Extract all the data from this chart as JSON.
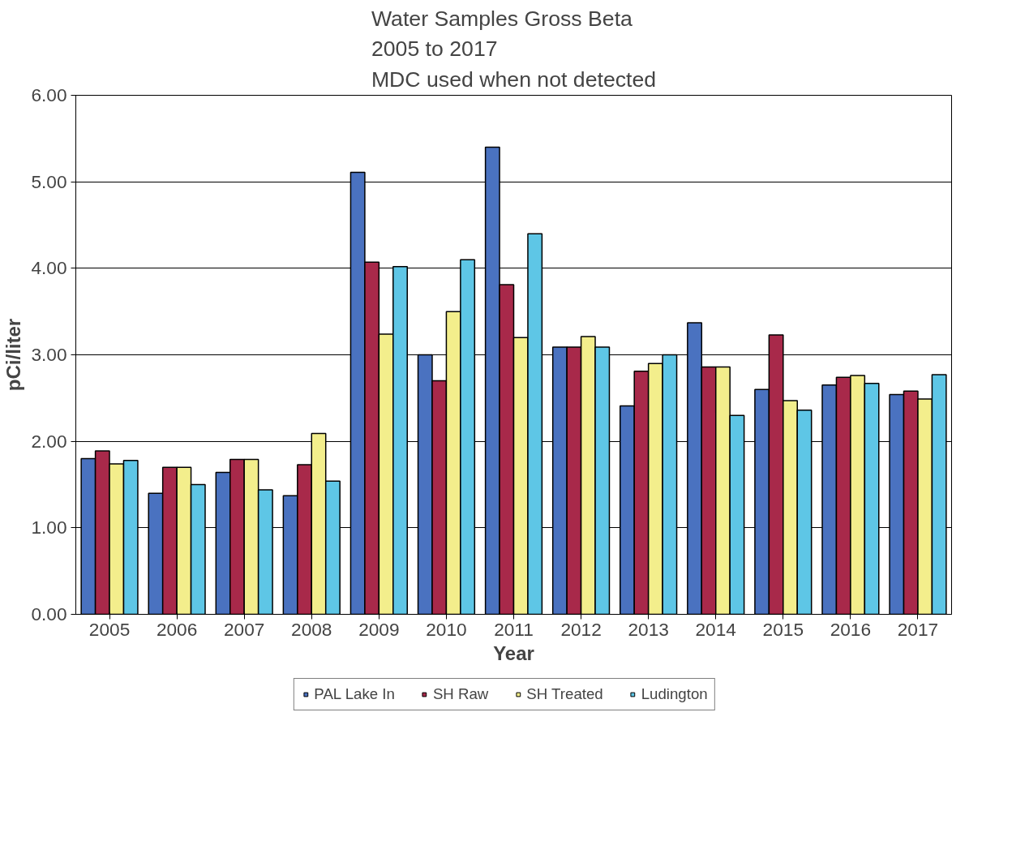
{
  "chart_data": {
    "type": "bar",
    "title": "Water Samples Gross Beta\n2005 to 2017\nMDC used when not detected",
    "xlabel": "Year",
    "ylabel": "pCi/liter",
    "categories": [
      "2005",
      "2006",
      "2007",
      "2008",
      "2009",
      "2010",
      "2011",
      "2012",
      "2013",
      "2014",
      "2015",
      "2016",
      "2017"
    ],
    "series": [
      {
        "name": "PAL Lake In",
        "color": "#4a72c0",
        "values": [
          1.8,
          1.4,
          1.64,
          1.37,
          5.11,
          3.0,
          5.4,
          3.09,
          2.41,
          3.37,
          2.6,
          2.65,
          2.54
        ]
      },
      {
        "name": "SH Raw",
        "color": "#a8294a",
        "values": [
          1.89,
          1.7,
          1.79,
          1.73,
          4.07,
          2.7,
          3.81,
          3.09,
          2.81,
          2.86,
          3.23,
          2.74,
          2.58
        ]
      },
      {
        "name": "SH Treated",
        "color": "#f3ee8c",
        "values": [
          1.74,
          1.7,
          1.79,
          2.09,
          3.24,
          3.5,
          3.2,
          3.21,
          2.9,
          2.86,
          2.47,
          2.76,
          2.49
        ]
      },
      {
        "name": "Ludington",
        "color": "#5ec6e6",
        "values": [
          1.78,
          1.5,
          1.44,
          1.54,
          4.02,
          4.1,
          4.4,
          3.09,
          3.0,
          2.3,
          2.36,
          2.67,
          2.77
        ]
      }
    ],
    "ylim": [
      0,
      6
    ],
    "yticks": [
      {
        "value": 0,
        "label": "0.00"
      },
      {
        "value": 1,
        "label": "1.00"
      },
      {
        "value": 2,
        "label": "2.00"
      },
      {
        "value": 3,
        "label": "3.00"
      },
      {
        "value": 4,
        "label": "4.00"
      },
      {
        "value": 5,
        "label": "5.00"
      },
      {
        "value": 6,
        "label": "6.00"
      }
    ],
    "grid": "y",
    "legend": "bottom"
  }
}
